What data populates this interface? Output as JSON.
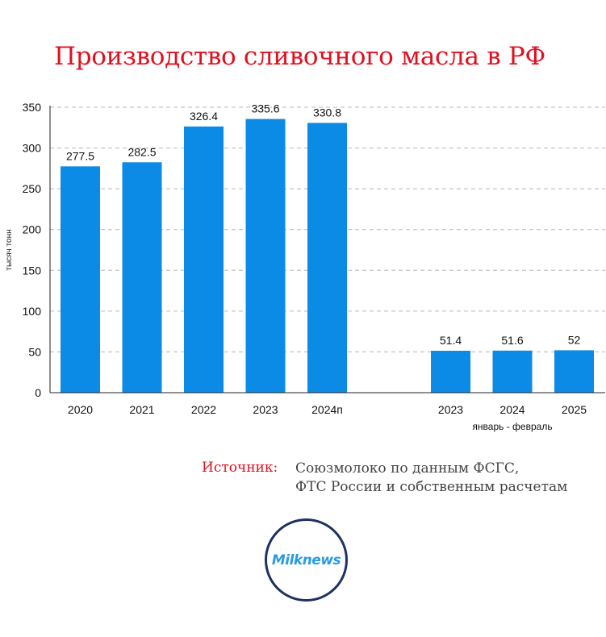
{
  "header": {
    "title": "Производство сливочного масла в РФ"
  },
  "source": {
    "label": "Источник:",
    "line1": "Союзмолоко по данным ФСГС,",
    "line2": "ФТС России и собственным расчетам"
  },
  "logo": {
    "text": "Milknews"
  },
  "colors": {
    "bar": "#0b8be6",
    "title": "#e0101f",
    "logo_ring": "#1e3160",
    "logo_text": "#2a9be0"
  },
  "chart_data": {
    "type": "bar",
    "title": "Производство сливочного масла в РФ",
    "ylabel": "тысяч тонн",
    "ylim": [
      0,
      350
    ],
    "yticks": [
      0,
      50,
      100,
      150,
      200,
      250,
      300,
      350
    ],
    "grid": true,
    "groups": [
      {
        "categories": [
          "2020",
          "2021",
          "2022",
          "2023",
          "2024п"
        ],
        "values": [
          277.5,
          282.5,
          326.4,
          335.6,
          330.8
        ],
        "labels": [
          "277.5",
          "282.5",
          "326.4",
          "335.6",
          "330.8"
        ],
        "sublabel": ""
      },
      {
        "categories": [
          "2023",
          "2024",
          "2025"
        ],
        "values": [
          51.4,
          51.6,
          52
        ],
        "labels": [
          "51.4",
          "51.6",
          "52"
        ],
        "sublabel": "январь - февраль"
      }
    ]
  }
}
